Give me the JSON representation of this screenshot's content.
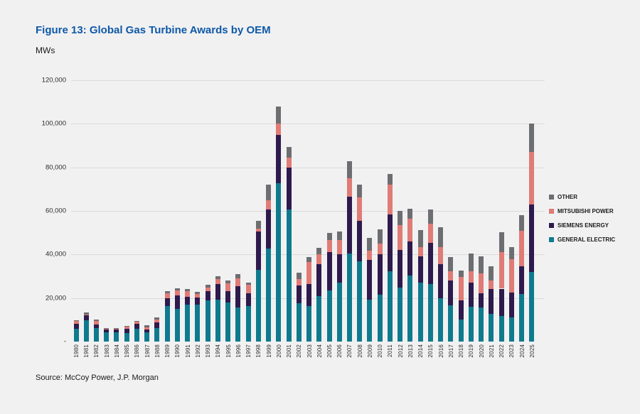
{
  "figure": {
    "title": "Figure 13: Global Gas Turbine Awards by OEM",
    "unit_label": "MWs",
    "source": "Source: McCoy Power, J.P. Morgan"
  },
  "colors": {
    "title_blue": "#0e59a7",
    "background": "#f1f1f2",
    "gridline": "#dadada",
    "axis_text": "#2b2b2b"
  },
  "chart_data": {
    "type": "bar",
    "stacked": true,
    "title": "Figure 13: Global Gas Turbine Awards by OEM",
    "xlabel": "",
    "ylabel": "MWs",
    "ylim": [
      0,
      120000
    ],
    "ytick_step": 20000,
    "ytick_labels": [
      "-",
      "20,000",
      "40,000",
      "60,000",
      "80,000",
      "100,000",
      "120,000"
    ],
    "grid": true,
    "legend_position": "right",
    "legend_order": [
      "OTHER",
      "MITSUBISHI POWER",
      "SIEMENS ENERGY",
      "GENERAL ELECTRIC"
    ],
    "categories": [
      "1980",
      "1981",
      "1982",
      "1983",
      "1984",
      "1985",
      "1986",
      "1987",
      "1988",
      "1989",
      "1990",
      "1991",
      "1992",
      "1993",
      "1994",
      "1995",
      "1996",
      "1997",
      "1998",
      "1999",
      "2000",
      "2001",
      "2002",
      "2003",
      "2004",
      "2005",
      "2006",
      "2007",
      "2008",
      "2009",
      "2010",
      "2011",
      "2012",
      "2013",
      "2014",
      "2015",
      "2016",
      "2017",
      "2018",
      "2019",
      "2020",
      "2021",
      "2022",
      "2023",
      "2024",
      "2025"
    ],
    "series": [
      {
        "name": "GENERAL ELECTRIC",
        "color": "#0f7a8e",
        "values": [
          6000,
          9900,
          6200,
          4100,
          4400,
          3800,
          5800,
          4100,
          6300,
          16200,
          14900,
          17100,
          16800,
          18900,
          19100,
          18100,
          15700,
          16200,
          33000,
          42800,
          72700,
          60700,
          17700,
          16400,
          20800,
          23400,
          27000,
          40400,
          36800,
          19400,
          21500,
          32400,
          24800,
          30200,
          27000,
          26400,
          19900,
          16600,
          10100,
          16100,
          15600,
          12800,
          11800,
          11200,
          21800,
          32000
        ]
      },
      {
        "name": "SIEMENS ENERGY",
        "color": "#2e1a4d",
        "values": [
          2200,
          2200,
          1700,
          1600,
          1100,
          2000,
          2200,
          1600,
          2500,
          3800,
          6200,
          3500,
          3300,
          4100,
          7200,
          5200,
          9600,
          6000,
          17400,
          17900,
          22200,
          19100,
          8200,
          10000,
          14900,
          17700,
          13100,
          26100,
          18500,
          18000,
          18500,
          26100,
          17400,
          15800,
          12000,
          19000,
          15800,
          11400,
          8700,
          10900,
          6500,
          11400,
          12500,
          11400,
          12800,
          31000
        ]
      },
      {
        "name": "MITSUBISHI POWER",
        "color": "#e07b76",
        "values": [
          1200,
          400,
          1500,
          300,
          300,
          1000,
          1000,
          900,
          1300,
          2200,
          2400,
          2600,
          1800,
          1900,
          2400,
          3500,
          3700,
          3800,
          1600,
          4300,
          5100,
          4800,
          2700,
          10000,
          4400,
          5400,
          6500,
          8400,
          10900,
          4400,
          4900,
          13600,
          11400,
          10300,
          4400,
          8700,
          7600,
          4400,
          10900,
          5400,
          9200,
          3800,
          16900,
          15200,
          16300,
          24000
        ]
      },
      {
        "name": "OTHER",
        "color": "#6d6e71",
        "values": [
          300,
          900,
          700,
          100,
          100,
          100,
          100,
          800,
          1100,
          900,
          900,
          800,
          800,
          1100,
          1300,
          1100,
          2000,
          1100,
          3500,
          7100,
          8000,
          4900,
          2900,
          2500,
          2900,
          3300,
          3800,
          7900,
          5800,
          5700,
          6500,
          4900,
          6300,
          4700,
          7900,
          6500,
          9200,
          6500,
          3000,
          8200,
          7800,
          6700,
          8900,
          5700,
          7100,
          13000
        ]
      }
    ]
  }
}
